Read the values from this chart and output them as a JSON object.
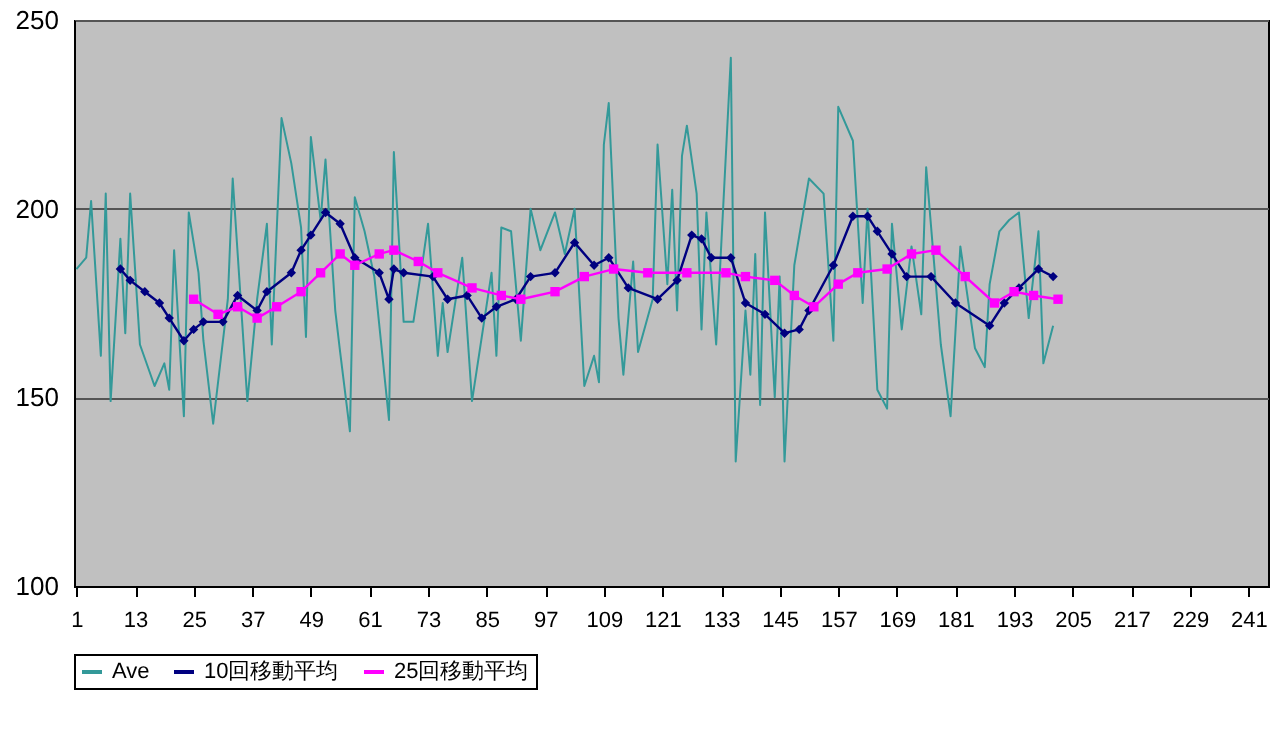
{
  "chart_data": {
    "type": "line",
    "xlim": [
      0.5,
      245
    ],
    "ylim": [
      100,
      250
    ],
    "xticks": [
      1,
      13,
      25,
      37,
      49,
      61,
      73,
      85,
      97,
      109,
      121,
      133,
      145,
      157,
      169,
      181,
      193,
      205,
      217,
      229,
      241
    ],
    "yticks": [
      100,
      150,
      200,
      250
    ],
    "grid": "y",
    "legend": "bottom",
    "series": [
      {
        "name": "Ave",
        "color": "#339999",
        "marker": "none",
        "x": [
          1,
          3,
          4,
          6,
          7,
          8,
          10,
          11,
          12,
          14,
          17,
          19,
          20,
          21,
          23,
          24,
          26,
          27,
          29,
          32,
          33,
          36,
          38,
          40,
          41,
          43,
          45,
          47,
          48,
          49,
          51,
          52,
          54,
          55,
          57,
          58,
          60,
          62,
          65,
          66,
          68,
          70,
          72,
          73,
          75,
          76,
          77,
          80,
          82,
          86,
          87,
          88,
          90,
          92,
          94,
          96,
          99,
          101,
          103,
          105,
          107,
          108,
          109,
          110,
          112,
          113,
          115,
          116,
          119,
          120,
          122,
          123,
          124,
          125,
          126,
          128,
          129,
          130,
          132,
          135,
          136,
          138,
          139,
          140,
          141,
          142,
          144,
          145,
          146,
          148,
          151,
          154,
          156,
          157,
          160,
          162,
          163,
          165,
          167,
          168,
          170,
          172,
          174,
          175,
          178,
          180,
          182,
          184,
          185,
          187,
          188,
          190,
          192,
          194,
          196,
          198,
          199,
          201
        ],
        "values": [
          184,
          187,
          202,
          161,
          204,
          149,
          192,
          167,
          204,
          164,
          153,
          159,
          152,
          189,
          145,
          199,
          183,
          165,
          143,
          176,
          208,
          149,
          176,
          196,
          164,
          224,
          212,
          195,
          166,
          219,
          197,
          213,
          173,
          162,
          141,
          203,
          194,
          182,
          144,
          215,
          170,
          170,
          187,
          196,
          161,
          175,
          162,
          187,
          149,
          183,
          161,
          195,
          194,
          165,
          200,
          189,
          199,
          188,
          200,
          153,
          161,
          154,
          217,
          228,
          171,
          156,
          186,
          162,
          176,
          217,
          180,
          205,
          173,
          214,
          222,
          204,
          168,
          199,
          164,
          240,
          133,
          173,
          156,
          188,
          148,
          199,
          150,
          182,
          133,
          185,
          208,
          204,
          165,
          227,
          218,
          175,
          200,
          152,
          147,
          196,
          168,
          190,
          172,
          211,
          164,
          145,
          190,
          172,
          163,
          158,
          180,
          194,
          197,
          199,
          171,
          194,
          159,
          169
        ]
      },
      {
        "name": "10回移動平均",
        "color": "#000080",
        "marker": "diamond",
        "x": [
          10,
          12,
          15,
          18,
          20,
          23,
          25,
          27,
          31,
          34,
          38,
          40,
          45,
          47,
          49,
          52,
          55,
          58,
          63,
          65,
          66,
          68,
          74,
          77,
          81,
          84,
          87,
          91,
          94,
          99,
          103,
          107,
          110,
          114,
          120,
          124,
          127,
          129,
          131,
          135,
          138,
          142,
          146,
          149,
          151,
          156,
          160,
          163,
          165,
          168,
          171,
          176,
          181,
          188,
          191,
          194,
          198,
          201
        ],
        "values": [
          184,
          181,
          178,
          175,
          171,
          165,
          168,
          170,
          170,
          177,
          173,
          178,
          183,
          189,
          193,
          199,
          196,
          187,
          183,
          176,
          184,
          183,
          182,
          176,
          177,
          171,
          174,
          176,
          182,
          183,
          191,
          185,
          187,
          179,
          176,
          181,
          193,
          192,
          187,
          187,
          175,
          172,
          167,
          168,
          173,
          185,
          198,
          198,
          194,
          188,
          182,
          182,
          175,
          169,
          175,
          179,
          184,
          182
        ]
      },
      {
        "name": "25回移動平均",
        "color": "#ff00ff",
        "marker": "square",
        "x": [
          25,
          30,
          34,
          38,
          42,
          47,
          51,
          55,
          58,
          63,
          66,
          71,
          75,
          82,
          88,
          92,
          99,
          105,
          111,
          118,
          126,
          134,
          138,
          144,
          148,
          152,
          157,
          161,
          167,
          172,
          177,
          183,
          189,
          193,
          197,
          202
        ],
        "values": [
          176,
          172,
          174,
          171,
          174,
          178,
          183,
          188,
          185,
          188,
          189,
          186,
          183,
          179,
          177,
          176,
          178,
          182,
          184,
          183,
          183,
          183,
          182,
          181,
          177,
          174,
          180,
          183,
          184,
          188,
          189,
          182,
          175,
          178,
          177,
          176
        ]
      }
    ]
  }
}
